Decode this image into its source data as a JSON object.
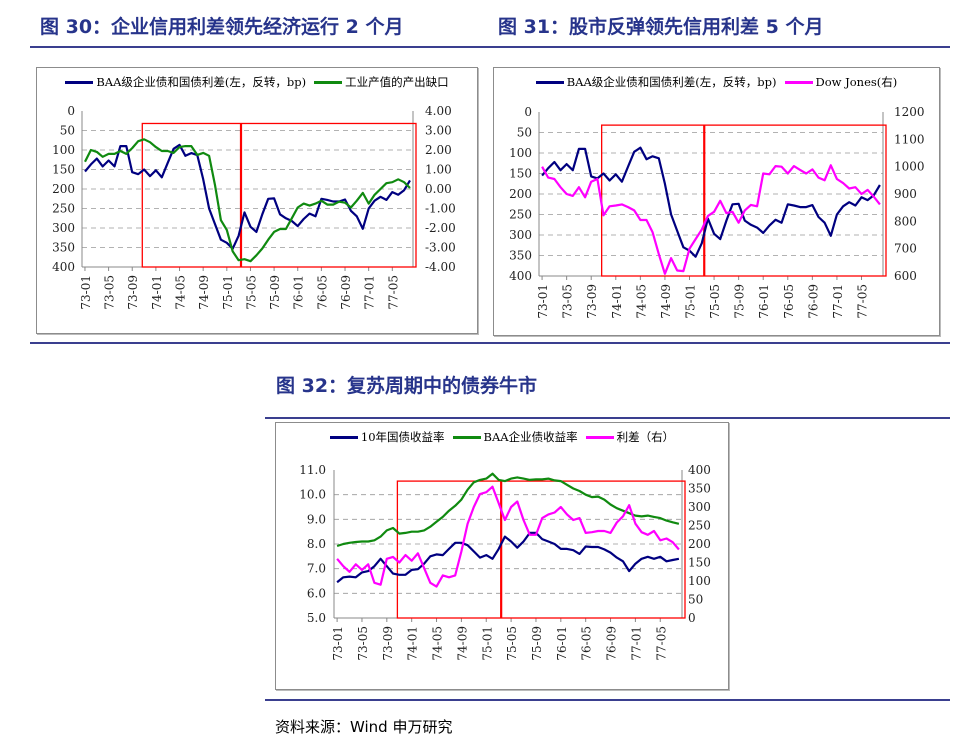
{
  "titles": {
    "fig30": "图 30：企业信用利差领先经济运行 2 个月",
    "fig31": "图 31：股市反弹领先信用利差 5 个月",
    "fig32": "图 32：复苏周期中的债券牛市"
  },
  "source": "资料来源：Wind 申万研究",
  "chart_data": [
    {
      "type": "line",
      "x_start": "73-01",
      "x_end": "77-08",
      "frequency": "monthly",
      "x_tick_labels": [
        "73-01",
        "73-05",
        "73-09",
        "74-01",
        "74-05",
        "74-09",
        "75-01",
        "75-05",
        "75-09",
        "76-01",
        "76-05",
        "76-09",
        "77-01",
        "77-05"
      ],
      "y_left": {
        "range": [
          0,
          400
        ],
        "reversed": true,
        "ticks": [
          "0",
          "50",
          "100",
          "150",
          "200",
          "250",
          "300",
          "350",
          "400"
        ]
      },
      "y_right": {
        "range": [
          -4,
          4
        ],
        "reversed": false,
        "ticks": [
          "4.00",
          "3.00",
          "2.00",
          "1.00",
          "0.00",
          "-1.00",
          "-2.00",
          "-3.00",
          "-4.00"
        ]
      },
      "grid": true,
      "legend": "top",
      "highlight": {
        "start": "73-11",
        "divider": "75-03",
        "end": "77-08",
        "top_left_axis": 32,
        "color": "#ff0000"
      },
      "series": [
        {
          "name": "BAA级企业债和国债利差(左，反转，bp)",
          "axis": "left",
          "color": "#000080",
          "values": [
            155,
            137,
            122,
            142,
            127,
            142,
            90,
            90,
            157,
            162,
            150,
            167,
            152,
            170,
            133,
            97,
            87,
            115,
            108,
            113,
            175,
            250,
            290,
            330,
            338,
            353,
            320,
            260,
            297,
            310,
            265,
            225,
            224,
            265,
            275,
            282,
            295,
            277,
            263,
            270,
            225,
            228,
            232,
            232,
            227,
            256,
            270,
            302,
            250,
            230,
            220,
            228,
            208,
            215,
            203,
            178
          ]
        },
        {
          "name": "工业产值的产出缺口",
          "axis": "right",
          "color": "#108a10",
          "values": [
            1.4,
            2.0,
            1.9,
            1.65,
            1.8,
            1.8,
            1.95,
            1.8,
            2.1,
            2.45,
            2.55,
            2.4,
            2.15,
            1.95,
            1.95,
            1.85,
            2.15,
            2.2,
            2.2,
            1.75,
            1.85,
            1.7,
            0.2,
            -1.6,
            -2.1,
            -3.2,
            -3.65,
            -3.6,
            -3.7,
            -3.4,
            -3.05,
            -2.6,
            -2.2,
            -2.05,
            -2.05,
            -1.5,
            -0.95,
            -0.75,
            -0.85,
            -0.75,
            -0.6,
            -0.8,
            -0.8,
            -0.65,
            -0.7,
            -0.95,
            -0.6,
            -0.2,
            -0.75,
            -0.3,
            0.0,
            0.3,
            0.35,
            0.5,
            0.35,
            0.05
          ]
        }
      ]
    },
    {
      "type": "line",
      "x_start": "73-01",
      "x_end": "77-08",
      "frequency": "monthly",
      "x_tick_labels": [
        "73-01",
        "73-05",
        "73-09",
        "74-01",
        "74-05",
        "74-09",
        "75-01",
        "75-05",
        "75-09",
        "76-01",
        "76-05",
        "76-09",
        "77-01",
        "77-05"
      ],
      "y_left": {
        "range": [
          0,
          400
        ],
        "reversed": true,
        "ticks": [
          "0",
          "50",
          "100",
          "150",
          "200",
          "250",
          "300",
          "350",
          "400"
        ]
      },
      "y_right": {
        "range": [
          600,
          1200
        ],
        "reversed": false,
        "ticks": [
          "1200",
          "1100",
          "1000",
          "900",
          "800",
          "700",
          "600"
        ]
      },
      "grid": true,
      "legend": "top",
      "highlight": {
        "start": "73-11",
        "divider": "75-03",
        "end": "77-08",
        "top_left_axis": 32,
        "color": "#ff0000"
      },
      "series": [
        {
          "name": "BAA级企业债和国债利差(左，反转，bp)",
          "axis": "left",
          "color": "#000080",
          "values": [
            155,
            137,
            122,
            142,
            127,
            142,
            90,
            90,
            157,
            162,
            150,
            167,
            152,
            170,
            133,
            97,
            87,
            115,
            108,
            113,
            175,
            250,
            290,
            330,
            338,
            353,
            320,
            260,
            297,
            310,
            265,
            225,
            224,
            265,
            275,
            282,
            295,
            277,
            263,
            270,
            225,
            228,
            232,
            232,
            227,
            256,
            270,
            302,
            250,
            230,
            220,
            228,
            208,
            215,
            203,
            178
          ]
        },
        {
          "name": "Dow Jones(右)",
          "axis": "right",
          "color": "#ff00ff",
          "values": [
            1000,
            960,
            955,
            925,
            900,
            893,
            925,
            888,
            945,
            955,
            822,
            855,
            858,
            862,
            852,
            840,
            805,
            805,
            760,
            680,
            608,
            665,
            620,
            618,
            700,
            735,
            770,
            820,
            835,
            875,
            830,
            835,
            795,
            840,
            860,
            855,
            975,
            972,
            1002,
            1000,
            975,
            1002,
            988,
            975,
            990,
            960,
            950,
            1005,
            955,
            940,
            920,
            925,
            900,
            915,
            890,
            862
          ]
        }
      ]
    },
    {
      "type": "line",
      "x_start": "73-01",
      "x_end": "77-08",
      "frequency": "monthly",
      "x_tick_labels": [
        "73-01",
        "73-05",
        "73-09",
        "74-01",
        "74-05",
        "74-09",
        "75-01",
        "75-05",
        "75-09",
        "76-01",
        "76-05",
        "76-09",
        "77-01",
        "77-05"
      ],
      "y_left": {
        "range": [
          5,
          11
        ],
        "reversed": false,
        "ticks": [
          "11.0",
          "10.0",
          "9.0",
          "8.0",
          "7.0",
          "6.0",
          "5.0"
        ]
      },
      "y_right": {
        "range": [
          0,
          400
        ],
        "reversed": false,
        "ticks": [
          "400",
          "350",
          "300",
          "250",
          "200",
          "150",
          "100",
          "50",
          "0"
        ]
      },
      "grid": true,
      "legend": "top",
      "highlight": {
        "start": "73-11",
        "divider": "75-03",
        "end": "77-08",
        "top_left_axis": 10.55,
        "color": "#ff0000"
      },
      "series": [
        {
          "name": "10年国债收益率",
          "axis": "left",
          "color": "#000080",
          "values": [
            6.45,
            6.65,
            6.68,
            6.65,
            6.85,
            6.9,
            7.1,
            7.4,
            7.1,
            6.8,
            6.75,
            6.75,
            6.95,
            6.98,
            7.2,
            7.5,
            7.58,
            7.55,
            7.8,
            8.05,
            8.05,
            7.95,
            7.7,
            7.45,
            7.55,
            7.4,
            7.8,
            8.3,
            8.1,
            7.85,
            8.1,
            8.45,
            8.45,
            8.2,
            8.1,
            8.0,
            7.8,
            7.8,
            7.75,
            7.6,
            7.9,
            7.88,
            7.88,
            7.78,
            7.65,
            7.45,
            7.3,
            6.9,
            7.2,
            7.4,
            7.48,
            7.4,
            7.48,
            7.3,
            7.35,
            7.4
          ]
        },
        {
          "name": "BAA企业债收益率",
          "axis": "left",
          "color": "#108a10",
          "values": [
            7.92,
            8.0,
            8.05,
            8.08,
            8.1,
            8.1,
            8.15,
            8.3,
            8.55,
            8.65,
            8.42,
            8.45,
            8.5,
            8.5,
            8.55,
            8.7,
            8.9,
            9.1,
            9.35,
            9.55,
            9.8,
            10.2,
            10.5,
            10.6,
            10.65,
            10.85,
            10.6,
            10.55,
            10.65,
            10.7,
            10.65,
            10.6,
            10.62,
            10.62,
            10.65,
            10.58,
            10.55,
            10.4,
            10.25,
            10.15,
            10.0,
            9.9,
            9.92,
            9.8,
            9.6,
            9.45,
            9.35,
            9.25,
            9.15,
            9.12,
            9.15,
            9.1,
            9.05,
            8.95,
            8.88,
            8.82
          ]
        },
        {
          "name": "利差（右）",
          "axis": "right",
          "color": "#ff00ff",
          "values": [
            160,
            140,
            125,
            145,
            130,
            145,
            95,
            90,
            160,
            165,
            150,
            170,
            155,
            175,
            135,
            95,
            85,
            115,
            110,
            115,
            180,
            255,
            300,
            335,
            340,
            355,
            310,
            265,
            300,
            315,
            265,
            225,
            225,
            270,
            280,
            285,
            300,
            280,
            265,
            270,
            230,
            232,
            235,
            235,
            230,
            258,
            275,
            305,
            255,
            232,
            225,
            235,
            210,
            215,
            205,
            185
          ]
        }
      ]
    }
  ]
}
